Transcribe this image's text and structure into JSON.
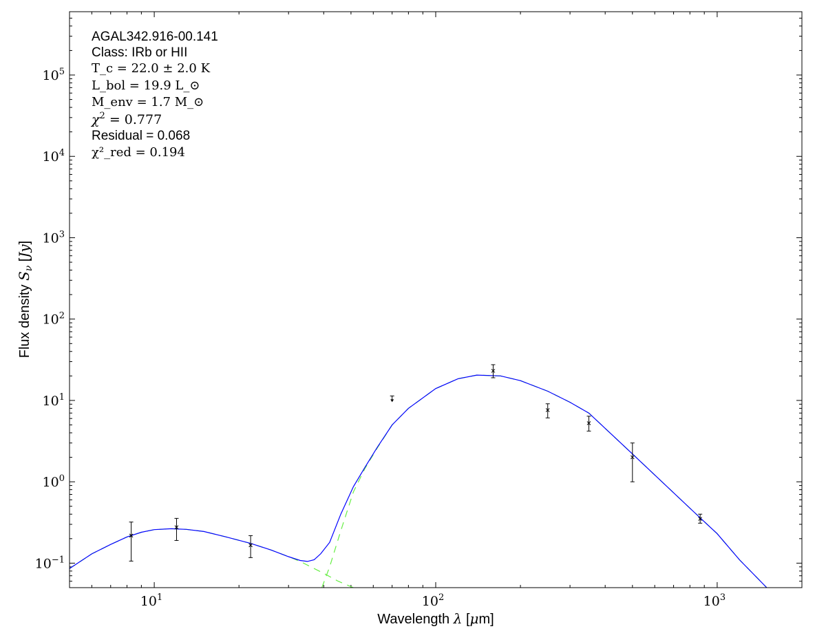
{
  "chart_data": {
    "type": "line",
    "title": "",
    "xlabel": "Wavelength λ [μm]",
    "ylabel": "Flux density S_ν [Jy]",
    "xscale": "log",
    "yscale": "log",
    "xlim": [
      5,
      2000
    ],
    "ylim": [
      0.05,
      600000
    ],
    "x_ticks": [
      {
        "value": 10,
        "base": "10",
        "exp": "1"
      },
      {
        "value": 100,
        "base": "10",
        "exp": "2"
      },
      {
        "value": 1000,
        "base": "10",
        "exp": "3"
      }
    ],
    "y_ticks": [
      {
        "value": 0.1,
        "base": "10",
        "exp": "−1"
      },
      {
        "value": 1,
        "base": "10",
        "exp": "0"
      },
      {
        "value": 10,
        "base": "10",
        "exp": "1"
      },
      {
        "value": 100,
        "base": "10",
        "exp": "2"
      },
      {
        "value": 1000,
        "base": "10",
        "exp": "3"
      },
      {
        "value": 10000,
        "base": "10",
        "exp": "4"
      },
      {
        "value": 100000,
        "base": "10",
        "exp": "5"
      }
    ],
    "grid": false,
    "annotations": [
      "AGAL342.916-00.141",
      "Class: IRb or HII",
      "T_c = 22.0 ± 2.0 K",
      "L_bol = 19.9 L_⊙",
      "M_env = 1.7 M_⊙",
      "χ² = 0.777",
      "Residual = 0.068",
      "χ²_red = 0.194"
    ],
    "colors": {
      "model": "#0000ff",
      "components": "#66ee44",
      "data": "#000000"
    },
    "observations": [
      {
        "x": 8.28,
        "y": 0.218,
        "err_low": 0.106,
        "err_high": 0.32
      },
      {
        "x": 12,
        "y": 0.276,
        "err_low": 0.19,
        "err_high": 0.355
      },
      {
        "x": 22,
        "y": 0.166,
        "err_low": 0.117,
        "err_high": 0.218
      },
      {
        "x": 70,
        "y": 10.5,
        "upper_limit": true
      },
      {
        "x": 160,
        "y": 23.1,
        "err_low": 19,
        "err_high": 27.5
      },
      {
        "x": 250,
        "y": 7.6,
        "err_low": 6.1,
        "err_high": 9.1
      },
      {
        "x": 350,
        "y": 5.25,
        "err_low": 4.2,
        "err_high": 6.4
      },
      {
        "x": 500,
        "y": 2.0,
        "err_low": 1.0,
        "err_high": 3.0
      },
      {
        "x": 870,
        "y": 0.35,
        "err_low": 0.31,
        "err_high": 0.4
      }
    ],
    "series": [
      {
        "style": "solid",
        "color": "#0000ff",
        "x": [
          5,
          6,
          7,
          8,
          9,
          10,
          11.5,
          13,
          15,
          18,
          22,
          26,
          30,
          33,
          35,
          37,
          39,
          42,
          46,
          51,
          56,
          62,
          70,
          80,
          100,
          120,
          140,
          170,
          200,
          250,
          300,
          350,
          500,
          870,
          1000,
          1200,
          1500
        ],
        "y": [
          0.086,
          0.13,
          0.17,
          0.21,
          0.24,
          0.258,
          0.265,
          0.26,
          0.245,
          0.21,
          0.175,
          0.145,
          0.12,
          0.108,
          0.105,
          0.11,
          0.13,
          0.18,
          0.4,
          0.87,
          1.5,
          2.65,
          5.0,
          8,
          14,
          18.5,
          20.5,
          20,
          17.5,
          13,
          9.5,
          7,
          2.2,
          0.36,
          0.23,
          0.11,
          0.05
        ]
      },
      {
        "style": "dashed",
        "color": "#66ee44",
        "x": [
          39.4,
          42,
          46,
          51,
          56,
          62,
          70,
          80,
          100,
          120,
          140,
          170,
          200,
          250,
          300,
          350,
          500,
          870,
          1000,
          1200,
          1500
        ],
        "y": [
          0.05,
          0.09,
          0.25,
          0.75,
          1.45,
          2.6,
          5.0,
          8,
          14,
          18.5,
          20.5,
          20,
          17.5,
          13,
          9.5,
          7,
          2.2,
          0.36,
          0.23,
          0.11,
          0.05
        ]
      },
      {
        "style": "dashed",
        "color": "#66ee44",
        "x": [
          5,
          6,
          7,
          8,
          9,
          10,
          11.5,
          13,
          15,
          18,
          22,
          26,
          30,
          33,
          36,
          40,
          45,
          51
        ],
        "y": [
          0.086,
          0.13,
          0.17,
          0.21,
          0.24,
          0.258,
          0.265,
          0.26,
          0.245,
          0.21,
          0.175,
          0.145,
          0.12,
          0.105,
          0.09,
          0.075,
          0.06,
          0.05
        ]
      }
    ]
  }
}
